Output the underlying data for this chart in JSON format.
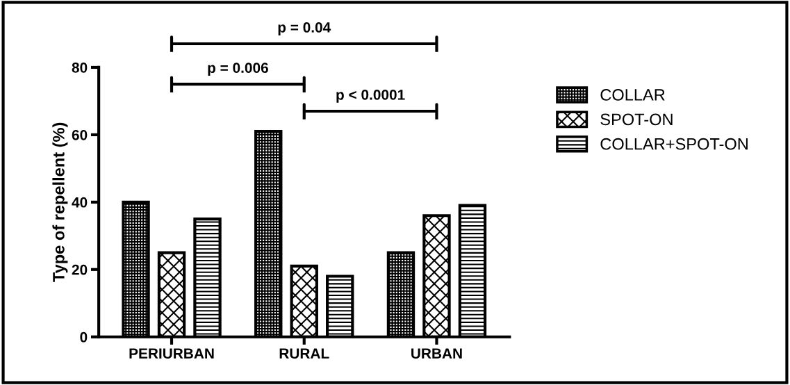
{
  "chart_data": {
    "type": "bar",
    "ylabel": "Type of repellent (%)",
    "categories": [
      "PERIURBAN",
      "RURAL",
      "URBAN"
    ],
    "series": [
      {
        "name": "COLLAR",
        "color": "#000000",
        "values": [
          40,
          61,
          25
        ]
      },
      {
        "name": "SPOT-ON",
        "color": "#000000",
        "values": [
          25,
          21,
          36
        ]
      },
      {
        "name": "COLLAR+SPOT-ON",
        "color": "#000000",
        "values": [
          35,
          18,
          39
        ]
      }
    ],
    "ylim": [
      0,
      80
    ],
    "yticks": [
      0,
      20,
      40,
      60,
      80
    ],
    "grid": false,
    "legend": "right",
    "annotations": [
      "p = 0.04",
      "p = 0.006",
      "p < 0.0001"
    ]
  }
}
